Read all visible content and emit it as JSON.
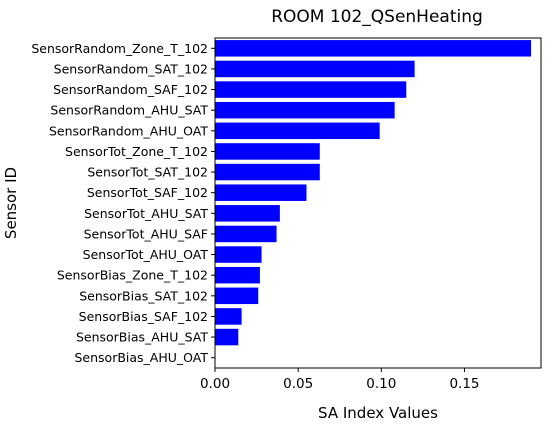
{
  "chart_data": {
    "type": "bar",
    "orientation": "horizontal",
    "title": "ROOM 102_QSenHeating",
    "xlabel": "SA Index Values",
    "ylabel": "Sensor ID",
    "xlim": [
      0,
      0.196
    ],
    "xticks": [
      0.0,
      0.05,
      0.1,
      0.15
    ],
    "xtick_labels": [
      "0.00",
      "0.05",
      "0.10",
      "0.15"
    ],
    "grid": false,
    "bar_color": "#0000ff",
    "categories": [
      "SensorRandom_Zone_T_102",
      "SensorRandom_SAT_102",
      "SensorRandom_SAF_102",
      "SensorRandom_AHU_SAT",
      "SensorRandom_AHU_OAT",
      "SensorTot_Zone_T_102",
      "SensorTot_SAT_102",
      "SensorTot_SAF_102",
      "SensorTot_AHU_SAT",
      "SensorTot_AHU_SAF",
      "SensorTot_AHU_OAT",
      "SensorBias_Zone_T_102",
      "SensorBias_SAT_102",
      "SensorBias_SAF_102",
      "SensorBias_AHU_SAT",
      "SensorBias_AHU_OAT"
    ],
    "values": [
      0.19,
      0.12,
      0.115,
      0.108,
      0.099,
      0.063,
      0.063,
      0.055,
      0.039,
      0.037,
      0.028,
      0.027,
      0.026,
      0.016,
      0.014,
      0.0
    ]
  }
}
